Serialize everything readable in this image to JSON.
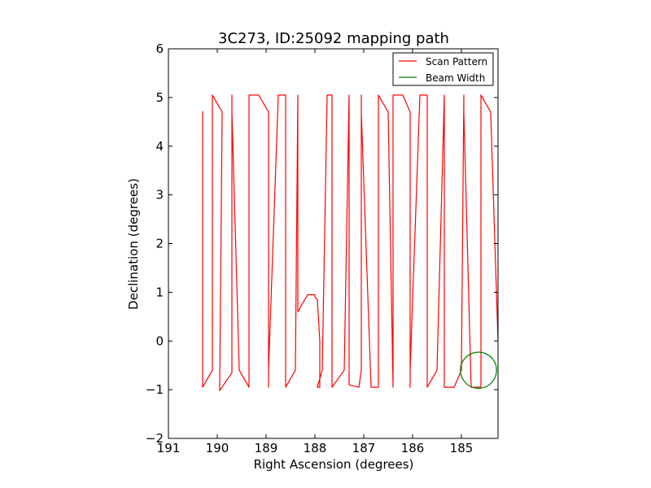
{
  "chart_data": {
    "type": "line",
    "title": "3C273, ID:25092 mapping path",
    "xlabel": "Right Ascension (degrees)",
    "ylabel": "Declination (degrees)",
    "xlim": [
      191.0,
      184.25
    ],
    "ylim": [
      -2,
      6
    ],
    "x_inverted": true,
    "xticks": [
      191,
      190,
      189,
      188,
      187,
      186,
      185
    ],
    "xtick_labels": [
      "191",
      "190",
      "189",
      "188",
      "187",
      "186",
      "185"
    ],
    "yticks": [
      -2,
      -1,
      0,
      1,
      2,
      3,
      4,
      5,
      6
    ],
    "ytick_labels": [
      "−2",
      "−1",
      "0",
      "1",
      "2",
      "3",
      "4",
      "5",
      "6"
    ],
    "grid": false,
    "legend_position": "top-right",
    "series": [
      {
        "name": "Scan Pattern",
        "color": "#ff0000",
        "x": [
          190.3,
          190.3,
          190.3,
          190.3,
          190.3,
          190.1,
          190.1,
          190.1,
          190.1,
          190.1,
          189.9,
          189.95,
          189.95,
          189.95,
          189.7,
          189.7,
          189.7,
          189.7,
          189.7,
          189.7,
          189.55,
          189.35,
          189.35,
          189.35,
          189.35,
          189.15,
          188.95,
          188.95,
          188.95,
          188.95,
          188.75,
          188.6,
          188.6,
          188.6,
          188.6,
          188.4,
          188.35,
          188.35,
          188.35,
          188.35,
          188.15,
          188.0,
          188.0,
          188.0,
          187.95,
          187.9,
          187.9,
          187.95,
          187.85,
          187.75,
          187.65,
          187.65,
          187.65,
          187.65,
          187.4,
          187.3,
          187.3,
          187.3,
          187.3,
          187.1,
          187.05,
          187.05,
          187.05,
          187.05,
          186.85,
          186.7,
          186.7,
          186.7,
          186.7,
          186.5,
          186.4,
          186.4,
          186.4,
          186.4,
          186.2,
          186.05,
          186.05,
          186.05,
          186.05,
          185.85,
          185.7,
          185.7,
          185.7,
          185.7,
          185.5,
          185.35,
          185.35,
          185.35,
          185.35,
          185.15,
          185.0,
          184.95,
          184.95,
          184.95,
          184.8,
          184.6,
          184.6,
          184.6,
          184.6,
          184.4,
          184.25,
          184.25
        ],
        "y": [
          4.72,
          -0.05,
          -0.4,
          -0.95,
          -0.95,
          -0.6,
          0.35,
          4.9,
          5.05,
          5.05,
          4.7,
          -0.9,
          -1.02,
          -1.02,
          -0.65,
          0.35,
          4.9,
          5.05,
          5.05,
          4.7,
          -0.6,
          -0.95,
          -0.95,
          -0.6,
          5.05,
          5.05,
          4.7,
          -0.95,
          -0.95,
          -0.6,
          5.05,
          5.05,
          4.7,
          -0.95,
          -0.95,
          -0.6,
          5.05,
          5.05,
          4.7,
          0.6,
          0.95,
          0.95,
          0.95,
          0.9,
          0.85,
          0.0,
          -0.95,
          -0.95,
          -0.6,
          5.05,
          5.05,
          4.7,
          -0.95,
          -0.95,
          -0.6,
          5.05,
          5.05,
          4.7,
          -0.9,
          -0.95,
          -0.6,
          5.05,
          5.05,
          4.7,
          -0.95,
          -0.95,
          -0.6,
          5.05,
          5.05,
          4.7,
          -0.95,
          -0.95,
          -0.6,
          5.05,
          5.05,
          4.7,
          -0.95,
          -0.95,
          -0.6,
          5.05,
          5.05,
          4.7,
          -0.95,
          -0.95,
          -0.6,
          5.05,
          5.05,
          4.7,
          -0.95,
          -0.95,
          -0.6,
          5.05,
          5.05,
          4.7,
          -0.95,
          -0.95,
          -0.6,
          5.05,
          5.05,
          4.7,
          0.0,
          0.0
        ]
      },
      {
        "name": "Beam Width",
        "color": "#008000",
        "shape": "circle",
        "center": [
          184.65,
          -0.6
        ],
        "radius_deg": 0.37
      }
    ]
  }
}
